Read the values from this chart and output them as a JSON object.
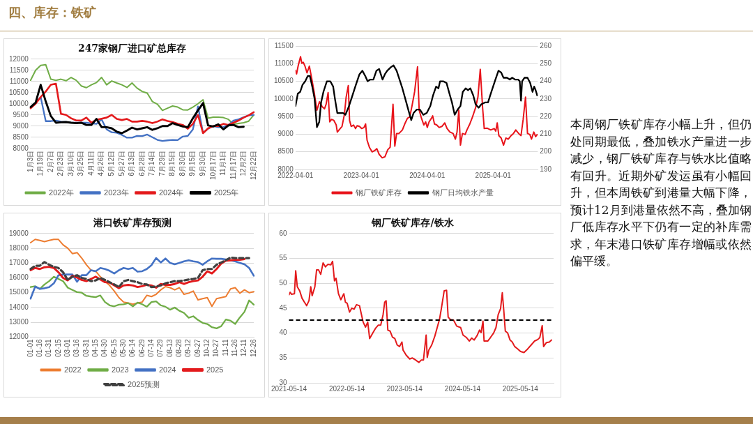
{
  "chart_data": [
    {
      "type": "line",
      "title": "247家钢厂进口矿总库存",
      "categories": [
        "1月3日",
        null,
        "1月19日",
        null,
        "2月7日",
        null,
        "2月23日",
        null,
        "3月10日",
        null,
        "3月25日",
        null,
        "4月11日",
        null,
        "4月26日",
        null,
        "5月12日",
        null,
        "5月27日",
        null,
        "6月13日",
        null,
        "6月28日",
        null,
        "7月14日",
        null,
        "7月29日",
        null,
        "8月15日",
        null,
        "8月30日",
        null,
        "9月15日",
        null,
        "9月30日",
        null,
        "10月17日",
        null,
        "11月1日",
        null,
        "11月17日",
        null,
        "12月2日",
        null,
        "12月22日"
      ],
      "ylim": [
        8000,
        12000
      ],
      "yticks": [
        8000,
        8500,
        9000,
        9500,
        10000,
        10500,
        11000,
        11500,
        12000
      ],
      "grid": "y",
      "legend": "bottom",
      "series": [
        {
          "name": "2022年",
          "color": "#70ad47",
          "values": [
            11050,
            11500,
            11720,
            11750,
            11100,
            11050,
            11100,
            11030,
            11180,
            11050,
            10800,
            10720,
            10850,
            10950,
            11180,
            10850,
            11020,
            10930,
            10850,
            10730,
            10930,
            10700,
            10550,
            10480,
            10100,
            9980,
            9700,
            9800,
            9900,
            9850,
            9730,
            9720,
            9850,
            10000,
            10180,
            9350,
            9400,
            9400,
            9380,
            9300,
            9080,
            9120,
            9150,
            9220,
            9500
          ]
        },
        {
          "name": "2023年",
          "color": "#4472c4",
          "values": [
            9850,
            10050,
            10300,
            9220,
            9220,
            9250,
            9200,
            9180,
            9150,
            9150,
            9150,
            9150,
            9120,
            9100,
            9300,
            8850,
            8720,
            8700,
            8600,
            8480,
            8480,
            8560,
            8550,
            8620,
            8500,
            8380,
            8330,
            8360,
            8380,
            8370,
            8530,
            8560,
            8850,
            9880,
            8700,
            8880,
            9000,
            8950,
            8950,
            9050,
            9250,
            9300,
            9400,
            9480,
            9500
          ]
        },
        {
          "name": "2024年",
          "color": "#e31a1c",
          "values": [
            9800,
            10000,
            10300,
            10550,
            10850,
            10900,
            9550,
            9500,
            9350,
            9250,
            9250,
            9380,
            9150,
            9280,
            9330,
            9380,
            9500,
            9320,
            9270,
            9320,
            9200,
            9200,
            9230,
            9200,
            9130,
            9200,
            9300,
            9230,
            9180,
            9100,
            9050,
            8880,
            9100,
            9500,
            8680,
            8900,
            9000,
            9000,
            9100,
            9050,
            9150,
            9250,
            9380,
            9480,
            9620
          ]
        },
        {
          "name": "2025年",
          "color": "#000000",
          "values": [
            9850,
            10050,
            10850,
            10100,
            9450,
            9150,
            9170,
            9180,
            9150,
            9130,
            9150,
            9050,
            9050,
            9320,
            8950,
            8950,
            8900,
            8750,
            8680,
            8800,
            8930,
            8850,
            8900,
            8950,
            8830,
            8900,
            9000,
            9000,
            9130,
            9050,
            8980,
            8950,
            9350,
            9700,
            10030,
            9030,
            8980,
            9080,
            8850,
            9030,
            9050,
            8950,
            8970,
            null,
            null
          ]
        }
      ]
    },
    {
      "type": "line",
      "xlim": [
        "2022-04-01",
        "2025-12-05"
      ],
      "xticks": [
        "2022-04-01",
        "2023-04-01",
        "2024-04-01",
        "2025-04-01"
      ],
      "ylim": [
        8000,
        11500
      ],
      "yticks": [
        8000,
        8500,
        9000,
        9500,
        10000,
        10500,
        11000,
        11500
      ],
      "y2lim": [
        190,
        260
      ],
      "y2ticks": [
        190,
        200,
        210,
        220,
        230,
        240,
        250,
        260
      ],
      "grid": "y",
      "legend": "bottom",
      "series": [
        {
          "name": "钢厂铁矿库存",
          "color": "#e8141b",
          "x": [
            "2022-04-01",
            "2022-04-07",
            "2022-04-16",
            "2022-04-29",
            "2022-05-06",
            "2022-05-14",
            "2022-05-23",
            "2022-06-04",
            "2022-06-17",
            "2022-06-30",
            "2022-07-13",
            "2022-07-29",
            "2022-08-12",
            "2022-08-27",
            "2022-09-09",
            "2022-09-18",
            "2022-09-29",
            "2022-10-08",
            "2022-10-18",
            "2022-10-31",
            "2022-11-13",
            "2022-11-19",
            "2022-12-05",
            "2022-12-15",
            "2022-12-28",
            "2023-01-07",
            "2023-01-19",
            "2023-01-26",
            "2023-02-04",
            "2023-02-17",
            "2023-02-28",
            "2023-03-09",
            "2023-03-22",
            "2023-04-03",
            "2023-04-16",
            "2023-04-25",
            "2023-05-03",
            "2023-05-16",
            "2023-05-31",
            "2023-06-13",
            "2023-06-26",
            "2023-07-09",
            "2023-07-26",
            "2023-08-10",
            "2023-08-26",
            "2023-09-08",
            "2023-09-14",
            "2023-09-24",
            "2023-10-04",
            "2023-10-14",
            "2023-10-27",
            "2023-11-15",
            "2023-11-28",
            "2023-12-13",
            "2023-12-26",
            "2024-01-08",
            "2024-01-22",
            "2024-01-31",
            "2024-02-07",
            "2024-02-16",
            "2024-02-29",
            "2024-03-13",
            "2024-03-23",
            "2024-04-01",
            "2024-04-11",
            "2024-04-24",
            "2024-05-01",
            "2024-05-11",
            "2024-05-24",
            "2024-06-06",
            "2024-06-21",
            "2024-07-07",
            "2024-07-20",
            "2024-08-05",
            "2024-08-22",
            "2024-09-04",
            "2024-09-13",
            "2024-09-23",
            "2024-10-02",
            "2024-10-13",
            "2024-10-28",
            "2024-11-07",
            "2024-11-23",
            "2024-12-08",
            "2024-12-25",
            "2025-01-07",
            "2025-01-20",
            "2025-02-02",
            "2025-02-11",
            "2025-02-28",
            "2025-03-19",
            "2025-04-07",
            "2025-04-16",
            "2025-04-24",
            "2025-05-03",
            "2025-05-16",
            "2025-05-29",
            "2025-06-11",
            "2025-06-24",
            "2025-07-10",
            "2025-07-23",
            "2025-08-05",
            "2025-08-21",
            "2025-09-03",
            "2025-09-15",
            "2025-09-28",
            "2025-10-09",
            "2025-10-22",
            "2025-10-31",
            "2025-11-13",
            "2025-11-23",
            "2025-12-02"
          ],
          "values": [
            10810,
            10710,
            10940,
            11200,
            11010,
            11040,
            10940,
            10740,
            10930,
            10580,
            10210,
            9680,
            9920,
            9780,
            9720,
            9850,
            10180,
            9350,
            9420,
            9390,
            9260,
            9060,
            9160,
            9220,
            9550,
            10050,
            10380,
            9390,
            9220,
            9260,
            9160,
            9240,
            9220,
            9160,
            9190,
            9290,
            8830,
            8630,
            8500,
            8530,
            8590,
            8430,
            8330,
            8360,
            8560,
            8630,
            9090,
            9850,
            8660,
            9020,
            9020,
            9120,
            9290,
            9450,
            9490,
            9820,
            10210,
            10610,
            10910,
            9680,
            9450,
            9260,
            9350,
            9190,
            9350,
            9450,
            9520,
            9290,
            9260,
            9190,
            9220,
            9320,
            9160,
            9060,
            9020,
            8860,
            9060,
            9680,
            8690,
            9020,
            8990,
            9120,
            9290,
            9490,
            9750,
            10050,
            10840,
            9750,
            9160,
            9170,
            9120,
            9160,
            9090,
            9320,
            8960,
            8890,
            8690,
            8890,
            8860,
            8960,
            9020,
            9120,
            9020,
            8960,
            9420,
            10050,
            9020,
            8990,
            8860,
            9060,
            8930,
            8990
          ]
        },
        {
          "name": "钢厂日均铁水产量",
          "color": "#000000",
          "axis": "y2",
          "x": [
            "2022-04-01",
            "2022-04-14",
            "2022-04-27",
            "2022-05-10",
            "2022-05-25",
            "2022-06-08",
            "2022-06-20",
            "2022-07-03",
            "2022-07-16",
            "2022-07-29",
            "2022-08-11",
            "2022-08-21",
            "2022-09-03",
            "2022-09-22",
            "2022-10-11",
            "2022-10-27",
            "2022-11-06",
            "2022-11-19",
            "2022-12-05",
            "2022-12-21",
            "2023-01-03",
            "2023-01-23",
            "2023-02-11",
            "2023-03-02",
            "2023-03-22",
            "2023-04-07",
            "2023-04-23",
            "2023-05-06",
            "2023-05-21",
            "2023-06-07",
            "2023-06-24",
            "2023-07-09",
            "2023-07-28",
            "2023-08-10",
            "2023-08-23",
            "2023-09-12",
            "2023-09-27",
            "2023-10-14",
            "2023-10-27",
            "2023-11-15",
            "2023-12-04",
            "2023-12-20",
            "2024-01-03",
            "2024-01-16",
            "2024-02-03",
            "2024-02-20",
            "2024-03-10",
            "2024-03-29",
            "2024-04-18",
            "2024-05-03",
            "2024-05-20",
            "2024-06-02",
            "2024-06-11",
            "2024-06-28",
            "2024-07-17",
            "2024-08-02",
            "2024-08-16",
            "2024-08-31",
            "2024-09-17",
            "2024-10-02",
            "2024-10-15",
            "2024-10-31",
            "2024-11-13",
            "2024-11-26",
            "2024-12-12",
            "2024-12-25",
            "2025-01-11",
            "2025-01-26",
            "2025-02-15",
            "2025-03-04",
            "2025-03-16",
            "2025-03-29",
            "2025-04-14",
            "2025-05-01",
            "2025-05-16",
            "2025-05-29",
            "2025-06-17",
            "2025-07-03",
            "2025-07-16",
            "2025-08-01",
            "2025-08-18",
            "2025-08-27",
            "2025-09-03",
            "2025-09-09",
            "2025-09-22",
            "2025-10-09",
            "2025-10-24",
            "2025-11-06",
            "2025-11-15",
            "2025-11-23",
            "2025-12-02"
          ],
          "values": [
            226,
            233,
            234,
            238,
            240,
            243,
            243,
            237,
            230,
            214,
            217,
            228,
            234,
            240,
            240,
            237,
            230,
            222,
            222,
            222,
            221,
            226,
            232,
            238,
            244,
            246,
            243,
            240,
            241,
            241,
            246,
            247,
            241,
            244,
            246,
            248,
            249,
            246,
            242,
            236,
            229,
            223,
            218,
            222,
            224,
            224,
            221,
            222,
            226,
            232,
            237,
            236,
            240,
            240,
            239,
            233,
            228,
            221,
            224,
            226,
            234,
            236,
            235,
            236,
            232,
            227,
            225,
            227,
            228,
            228,
            232,
            236,
            241,
            246,
            245,
            242,
            242,
            241,
            242,
            241,
            241,
            240,
            229,
            240,
            242,
            242,
            239,
            234,
            237,
            235,
            232
          ]
        }
      ]
    },
    {
      "type": "line",
      "title": "港口铁矿库存预测",
      "categories": [
        "01-01",
        null,
        "01-16",
        null,
        "01-31",
        null,
        "02-15",
        null,
        "03-01",
        null,
        "03-16",
        null,
        "03-31",
        null,
        "04-15",
        null,
        "04-30",
        null,
        "05-15",
        null,
        "05-30",
        null,
        "06-14",
        null,
        "06-29",
        null,
        "07-14",
        null,
        "07-29",
        null,
        "08-13",
        null,
        "08-28",
        null,
        "09-12",
        null,
        "09-27",
        null,
        "10-12",
        null,
        "10-27",
        null,
        "11-11",
        null,
        "11-26",
        null,
        "12-11",
        null,
        "12-26"
      ],
      "ylim": [
        12000,
        19000
      ],
      "yticks": [
        12000,
        13000,
        14000,
        15000,
        16000,
        17000,
        18000,
        19000
      ],
      "grid": "y",
      "legend": "bottom",
      "series": [
        {
          "name": "2022",
          "color": "#ed7d31",
          "values": [
            18380,
            18600,
            18530,
            18450,
            18530,
            18600,
            18600,
            18230,
            18010,
            17640,
            17710,
            17340,
            16890,
            16520,
            16450,
            16080,
            15780,
            15490,
            15110,
            14670,
            14370,
            14300,
            14220,
            14300,
            14370,
            14820,
            14740,
            14890,
            15190,
            15410,
            15340,
            15190,
            15340,
            14890,
            14970,
            15110,
            14520,
            14600,
            14670,
            14080,
            14600,
            14670,
            14740,
            15260,
            15340,
            14970,
            15190,
            15000,
            15070
          ]
        },
        {
          "name": "2023",
          "color": "#70ad47",
          "values": [
            15380,
            15440,
            15260,
            15560,
            15780,
            16080,
            15930,
            15780,
            15340,
            15190,
            15040,
            15000,
            14790,
            14740,
            14700,
            14820,
            14370,
            14150,
            14080,
            14190,
            14220,
            14300,
            14080,
            14330,
            14220,
            14050,
            14370,
            14420,
            14150,
            14050,
            13850,
            14000,
            13780,
            13630,
            13310,
            13410,
            13160,
            12960,
            12890,
            12670,
            12590,
            12740,
            13190,
            13110,
            12890,
            13330,
            13710,
            14480,
            14190
          ]
        },
        {
          "name": "2024",
          "color": "#4472c4",
          "values": [
            14600,
            15410,
            15260,
            15300,
            15380,
            15630,
            16180,
            16230,
            16230,
            16230,
            15740,
            16180,
            16180,
            16520,
            16450,
            16670,
            16600,
            16480,
            16300,
            16520,
            16670,
            16600,
            16670,
            16420,
            16450,
            16600,
            16860,
            17340,
            17040,
            17310,
            17010,
            16920,
            17010,
            17120,
            17190,
            17120,
            17070,
            16890,
            17120,
            17310,
            17290,
            17290,
            17250,
            17190,
            17120,
            17010,
            16920,
            16670,
            16150
          ]
        },
        {
          "name": "2025",
          "color": "#e31a1c",
          "values": [
            16520,
            16670,
            16600,
            16720,
            16750,
            16670,
            16380,
            16000,
            15830,
            16150,
            16030,
            15860,
            15780,
            15930,
            16080,
            15890,
            15710,
            15680,
            15490,
            15300,
            15490,
            15530,
            15490,
            15380,
            15440,
            15530,
            15490,
            15340,
            15590,
            15530,
            15530,
            15590,
            15710,
            15590,
            15710,
            15780,
            15830,
            16080,
            16450,
            16300,
            16600,
            16970,
            17160,
            17190,
            17220,
            17220,
            17270,
            null,
            null
          ]
        },
        {
          "name": "2025预测",
          "color": "#404040",
          "line_style": "dashed",
          "values": [
            16600,
            16820,
            16820,
            17070,
            16890,
            16750,
            16670,
            16380,
            15860,
            16080,
            16180,
            16000,
            15930,
            15780,
            15830,
            16000,
            15860,
            15710,
            15560,
            15380,
            15780,
            15860,
            15780,
            15710,
            15590,
            15560,
            15380,
            15410,
            15490,
            15630,
            15710,
            15780,
            15780,
            15830,
            15890,
            15930,
            16000,
            16520,
            16600,
            16600,
            16890,
            17040,
            17190,
            17370,
            17340,
            17340,
            17340,
            17340,
            null
          ]
        }
      ]
    },
    {
      "type": "line",
      "title": "钢厂铁矿库存/铁水",
      "xlim": [
        "2021-05-14",
        "2025-12-10"
      ],
      "xticks": [
        "2021-05-14",
        "2022-05-14",
        "2023-05-14",
        "2024-05-14",
        "2025-05-14"
      ],
      "ylim": [
        30,
        60
      ],
      "yticks": [
        30,
        35,
        40,
        45,
        50,
        55,
        60
      ],
      "grid": "y",
      "ref_lines": [
        {
          "axis": "y",
          "value": 42.6,
          "color": "#000000",
          "line_style": "dashed"
        }
      ],
      "series": [
        {
          "color": "#e31a1c",
          "x": [
            "2021-05-14",
            "2021-05-21",
            "2021-05-29",
            "2021-06-17",
            "2021-06-25",
            "2021-07-05",
            "2021-07-20",
            "2021-08-04",
            "2021-08-19",
            "2021-09-02",
            "2021-09-17",
            "2021-09-28",
            "2021-10-07",
            "2021-10-24",
            "2021-11-04",
            "2021-11-16",
            "2021-11-30",
            "2021-12-15",
            "2021-12-30",
            "2022-01-14",
            "2022-02-02",
            "2022-02-13",
            "2022-02-25",
            "2022-03-07",
            "2022-03-22",
            "2022-04-06",
            "2022-04-25",
            "2022-05-05",
            "2022-05-16",
            "2022-05-31",
            "2022-06-14",
            "2022-06-29",
            "2022-07-14",
            "2022-08-02",
            "2022-08-13",
            "2022-08-25",
            "2022-09-09",
            "2022-09-23",
            "2022-10-05",
            "2022-10-23",
            "2022-11-10",
            "2022-11-29",
            "2022-12-14",
            "2022-12-29",
            "2023-01-08",
            "2023-01-17",
            "2023-01-28",
            "2023-02-11",
            "2023-02-26",
            "2023-03-13",
            "2023-03-28",
            "2023-04-12",
            "2023-04-27",
            "2023-05-04",
            "2023-05-23",
            "2023-06-15",
            "2023-07-02",
            "2023-07-22",
            "2023-08-12",
            "2023-08-28",
            "2023-09-10",
            "2023-09-27",
            "2023-10-04",
            "2023-10-14",
            "2023-11-01",
            "2023-11-21",
            "2023-12-10",
            "2023-12-20",
            "2023-12-31",
            "2024-01-19",
            "2024-02-03",
            "2024-02-13",
            "2024-02-28",
            "2024-03-18",
            "2024-04-07",
            "2024-05-02",
            "2024-05-17",
            "2024-06-08",
            "2024-06-26",
            "2024-07-11",
            "2024-07-26",
            "2024-08-14",
            "2024-08-29",
            "2024-09-08",
            "2024-09-20",
            "2024-09-27",
            "2024-10-20",
            "2024-11-06",
            "2024-11-26",
            "2024-12-11",
            "2024-12-25",
            "2025-01-09",
            "2025-01-20",
            "2025-01-29",
            "2025-02-08",
            "2025-02-23",
            "2025-03-10",
            "2025-03-24",
            "2025-04-08",
            "2025-04-28",
            "2025-05-15",
            "2025-06-06",
            "2025-06-29",
            "2025-07-21",
            "2025-08-12",
            "2025-09-01",
            "2025-09-14",
            "2025-09-29",
            "2025-10-08",
            "2025-10-26",
            "2025-11-13",
            "2025-11-27"
          ],
          "values": [
            47.7,
            48.2,
            47.8,
            47.9,
            52.5,
            49.3,
            48.5,
            47.0,
            46.2,
            45.5,
            46.5,
            49.3,
            47.5,
            49.3,
            52.7,
            52.7,
            51.8,
            54.1,
            53.3,
            53.8,
            53.7,
            54.4,
            50.5,
            51.0,
            47.9,
            46.7,
            47.9,
            46.2,
            46.0,
            44.2,
            45.0,
            44.8,
            45.7,
            45.5,
            43.9,
            42.2,
            41.2,
            42.2,
            38.9,
            39.9,
            40.9,
            41.6,
            41.6,
            43.7,
            46.2,
            46.5,
            40.6,
            40.4,
            39.2,
            38.9,
            37.6,
            37.3,
            38.2,
            36.6,
            35.6,
            34.8,
            35.0,
            34.6,
            34.1,
            34.6,
            34.6,
            39.6,
            35.1,
            36.6,
            37.6,
            39.4,
            41.6,
            42.7,
            44.7,
            48.5,
            48.6,
            43.2,
            42.7,
            42.6,
            41.4,
            41.1,
            39.6,
            39.1,
            38.4,
            39.0,
            38.6,
            39.5,
            40.6,
            40.1,
            42.4,
            38.4,
            38.4,
            39.1,
            40.0,
            41.1,
            43.7,
            44.9,
            48.1,
            44.7,
            40.4,
            40.0,
            38.6,
            38.2,
            37.3,
            36.8,
            36.3,
            36.1,
            36.8,
            37.6,
            38.4,
            38.7,
            39.1,
            41.5,
            37.3,
            38.1,
            38.2,
            38.6
          ]
        }
      ]
    },
    {
      "type": "other",
      "title": "四、库存：铁矿",
      "annotations": [
        "本周钢厂铁矿库存小幅上升，但仍处同期最低，叠加铁水产量进一步减少，钢厂铁矿库存与铁水比值略有回升。近期外矿发运虽有小幅回升，但本周铁矿到港量大幅下降，预计12月到港量依然不高，叠加钢厂低库存水平下仍有一定的补库需求，年末港口铁矿库存增幅或依然偏平缓。"
      ]
    }
  ]
}
